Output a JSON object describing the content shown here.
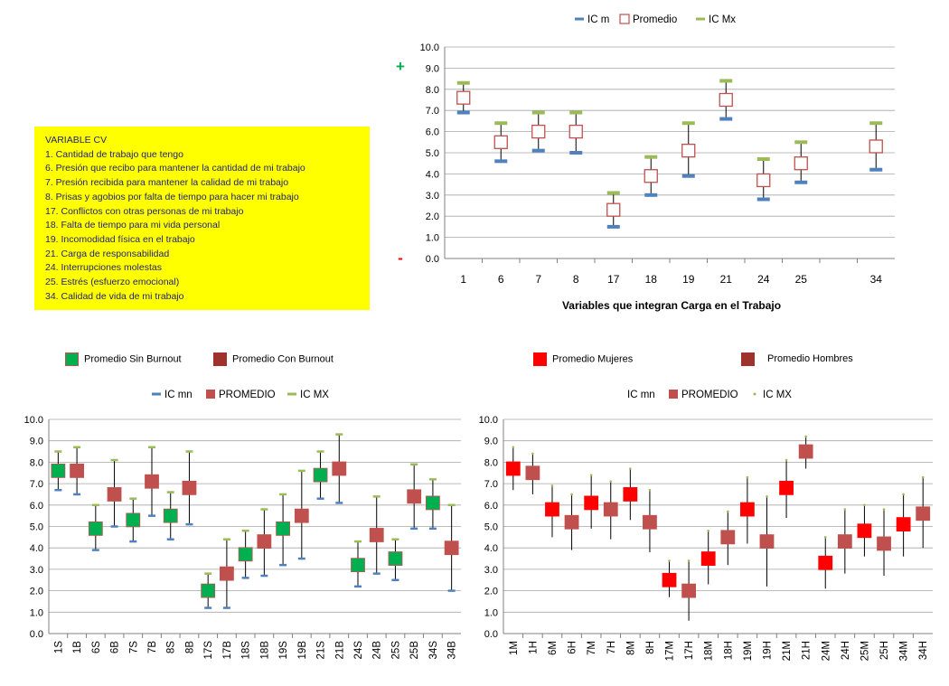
{
  "variables_box": {
    "title": "VARIABLE CV",
    "lines": [
      "1. Cantidad de trabajo que tengo",
      "6. Presión que recibo para mantener la cantidad de mi trabajo",
      "7. Presión recibida para mantener la calidad de mi trabajo",
      "8. Prisas y agobios por falta de tiempo para hacer mi trabajo",
      "17. Conflictos con otras personas de mi trabajo",
      "18. Falta de tiempo para mi vida personal",
      "19. Incomodidad física en el trabajo",
      "21. Carga de responsabilidad",
      "24. Interrupciones molestas",
      "25. Estrés (esfuerzo emocional)",
      "34. Calidad de vida de mi trabajo"
    ]
  },
  "swatch_legends": {
    "sin_burnout": "Promedio Sin Burnout",
    "con_burnout": "Promedio Con Burnout",
    "mujeres": "Promedio Mujeres",
    "hombres": "Promedio Hombres"
  },
  "colors": {
    "green": "#00b050",
    "darkred": "#a0322e",
    "red": "#ff0000",
    "promedio": "#c0504d",
    "icmn": "#4f81bd",
    "icmx": "#9bbb59",
    "yellow": "#ffff00"
  },
  "chart_data": [
    {
      "type": "scatter",
      "name": "top",
      "legend": [
        "IC m",
        "Promedio",
        "IC Mx"
      ],
      "xlabel": "Variables que integran Carga en el Trabajo",
      "ylim": [
        0,
        10
      ],
      "plus_label": "+",
      "minus_label": "-",
      "categories": [
        "1",
        "6",
        "7",
        "8",
        "17",
        "18",
        "19",
        "21",
        "24",
        "25",
        "34"
      ],
      "slot_positions": [
        0,
        1,
        2,
        3,
        4,
        5,
        6,
        7,
        8,
        9,
        11
      ],
      "slots": 12,
      "ic_min": [
        6.9,
        4.6,
        5.1,
        5.0,
        1.5,
        3.0,
        3.9,
        6.6,
        2.8,
        3.6,
        4.2
      ],
      "promedio": [
        7.6,
        5.5,
        6.0,
        6.0,
        2.3,
        3.9,
        5.1,
        7.5,
        3.7,
        4.5,
        5.3
      ],
      "ic_max": [
        8.3,
        6.4,
        6.9,
        6.9,
        3.1,
        4.8,
        6.4,
        8.4,
        4.7,
        5.5,
        6.4
      ]
    },
    {
      "type": "scatter",
      "name": "burnout",
      "legend": [
        "IC mn",
        "PROMEDIO",
        "IC MX"
      ],
      "ylim": [
        0,
        10
      ],
      "categories": [
        "1S",
        "1B",
        "6S",
        "6B",
        "7S",
        "7B",
        "8S",
        "8B",
        "17S",
        "17B",
        "18S",
        "18B",
        "19S",
        "19B",
        "21S",
        "21B",
        "24S",
        "24B",
        "25S",
        "25B",
        "34S",
        "34B"
      ],
      "ic_min": [
        6.7,
        6.5,
        3.9,
        5.0,
        4.3,
        5.5,
        4.4,
        5.1,
        1.2,
        1.2,
        2.6,
        2.7,
        3.2,
        3.5,
        6.3,
        6.1,
        2.2,
        2.8,
        2.5,
        4.9,
        4.9,
        2.0
      ],
      "promedio": [
        7.6,
        7.6,
        4.9,
        6.5,
        5.3,
        7.1,
        5.5,
        6.8,
        2.0,
        2.8,
        3.7,
        4.3,
        4.9,
        5.5,
        7.4,
        7.7,
        3.2,
        4.6,
        3.5,
        6.4,
        6.1,
        4.0
      ],
      "ic_max": [
        8.5,
        8.7,
        6.0,
        8.1,
        6.3,
        8.7,
        6.6,
        8.5,
        2.8,
        4.4,
        4.8,
        5.8,
        6.5,
        7.6,
        8.5,
        9.3,
        4.3,
        6.4,
        4.4,
        7.9,
        7.2,
        6.0
      ]
    },
    {
      "type": "scatter",
      "name": "sexo",
      "legend": [
        "IC mn",
        "PROMEDIO",
        "IC MX"
      ],
      "ylim": [
        0,
        10
      ],
      "categories": [
        "1M",
        "1H",
        "6M",
        "6H",
        "7M",
        "7H",
        "8M",
        "8H",
        "17M",
        "17H",
        "18M",
        "18H",
        "19M",
        "19H",
        "21M",
        "21H",
        "24M",
        "24H",
        "25M",
        "25H",
        "34M",
        "34H"
      ],
      "ic_min": [
        6.7,
        6.5,
        4.5,
        3.9,
        4.9,
        4.4,
        5.3,
        3.8,
        1.7,
        0.6,
        2.3,
        3.2,
        4.2,
        2.2,
        5.4,
        7.7,
        2.1,
        2.8,
        3.6,
        2.7,
        3.6,
        4.0
      ],
      "promedio": [
        7.7,
        7.5,
        5.8,
        5.2,
        6.1,
        5.8,
        6.5,
        5.2,
        2.5,
        2.0,
        3.5,
        4.5,
        5.8,
        4.3,
        6.8,
        8.5,
        3.3,
        4.3,
        4.8,
        4.2,
        5.1,
        5.6
      ],
      "ic_max": [
        8.7,
        8.4,
        6.9,
        6.5,
        7.4,
        7.1,
        7.7,
        6.7,
        3.4,
        3.4,
        4.8,
        5.7,
        7.3,
        6.4,
        8.1,
        9.2,
        4.5,
        5.8,
        6.0,
        5.8,
        6.5,
        7.3
      ]
    }
  ]
}
